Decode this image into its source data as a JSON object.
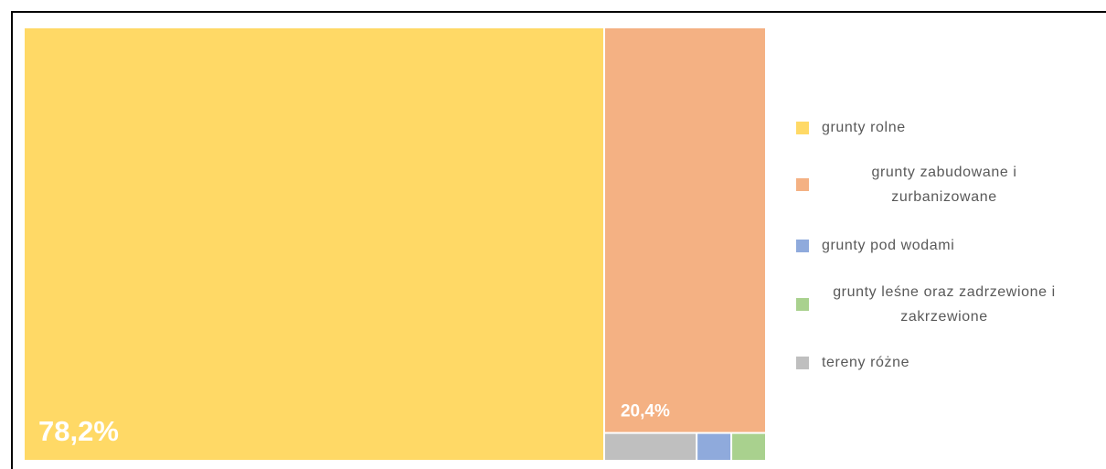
{
  "chart_data": {
    "type": "treemap",
    "categories": [
      "grunty rolne",
      "grunty zabudowane i zurbanizowane",
      "grunty pod wodami",
      "grunty leśne oraz zadrzewione i zakrzewione",
      "tereny różne"
    ],
    "values": [
      78.2,
      20.4,
      0.3,
      0.3,
      0.8
    ],
    "value_labels": [
      "78,2%",
      "20,4%",
      null,
      null,
      null
    ],
    "colors": [
      "#FFD966",
      "#F4B183",
      "#8FAADC",
      "#A9D18E",
      "#BFBFBF"
    ],
    "legend": "right"
  }
}
